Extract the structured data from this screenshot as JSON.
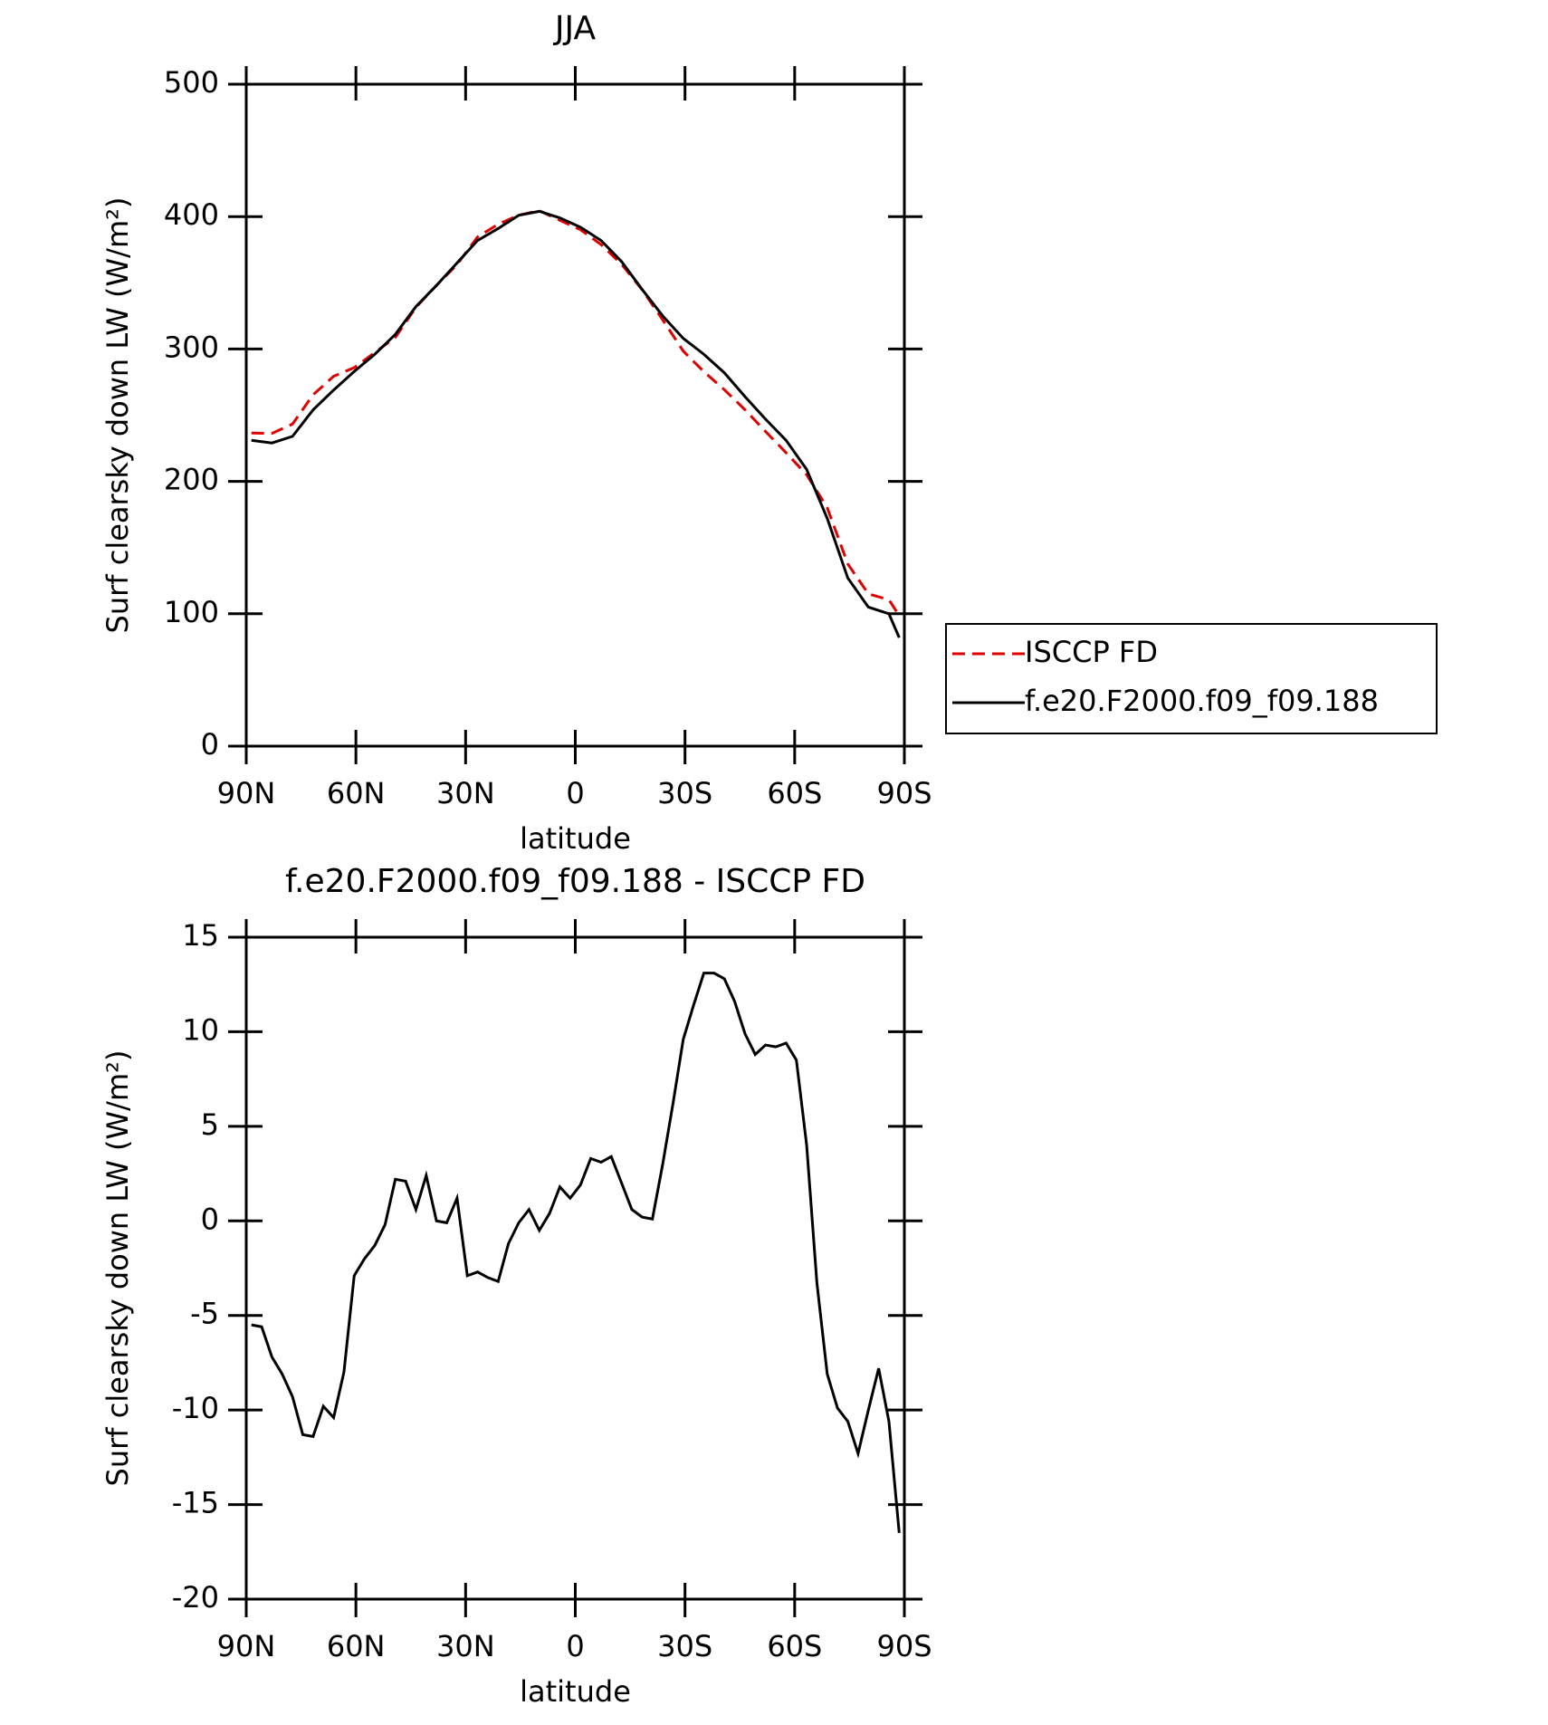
{
  "chart_data": [
    {
      "type": "line",
      "title": "JJA",
      "xlabel": "latitude",
      "ylabel": "Surf clearsky down LW (W/m²)",
      "x": [
        88.59,
        82.97,
        77.34,
        71.72,
        66.09,
        60.47,
        54.84,
        49.22,
        43.59,
        37.97,
        32.34,
        26.72,
        21.09,
        15.47,
        9.84,
        4.22,
        -1.41,
        -7.03,
        -12.66,
        -18.28,
        -23.91,
        -29.53,
        -35.16,
        -40.78,
        -46.41,
        -52.03,
        -57.66,
        -63.28,
        -68.91,
        -74.53,
        -80.16,
        -85.78,
        -88.59
      ],
      "series": [
        {
          "name": "ISCCP FD",
          "color": "#e00000",
          "line_style": "dashed",
          "values": [
            236.5,
            236.2,
            243.3,
            265.4,
            279.4,
            285.9,
            297.3,
            308.8,
            331.4,
            348,
            363.8,
            384.7,
            394.2,
            401.1,
            404.5,
            397.2,
            390.1,
            378.9,
            364,
            344.8,
            322,
            298.4,
            282.9,
            269.2,
            254.1,
            237.7,
            221.6,
            205,
            180.1,
            137.6,
            115,
            110.6,
            98.5
          ]
        },
        {
          "name": "f.e20.F2000.f09_f09.188",
          "color": "#000000",
          "line_style": "solid",
          "values": [
            231,
            229,
            234,
            254,
            269,
            283,
            296,
            311,
            332,
            348,
            365,
            382,
            391,
            401,
            404,
            399,
            392,
            382,
            366,
            345,
            325,
            308,
            296,
            282,
            264,
            247,
            231,
            209,
            172,
            127,
            105,
            100,
            82
          ]
        }
      ],
      "xlim": [
        90,
        -90
      ],
      "xticks": [
        {
          "value": 90,
          "label": "90N"
        },
        {
          "value": 60,
          "label": "60N"
        },
        {
          "value": 30,
          "label": "30N"
        },
        0,
        {
          "value": -30,
          "label": "30S"
        },
        {
          "value": -60,
          "label": "60S"
        },
        {
          "value": -90,
          "label": "90S"
        }
      ],
      "ylim": [
        0,
        500
      ],
      "yticks": [
        0,
        100,
        200,
        300,
        400,
        500
      ],
      "legend": "right"
    },
    {
      "type": "line",
      "title": "f.e20.F2000.f09_f09.188 - ISCCP FD",
      "xlabel": "latitude",
      "ylabel": "Surf clearsky down LW (W/m²)",
      "x": [
        88.59,
        85.78,
        82.97,
        80.16,
        77.34,
        74.53,
        71.72,
        68.91,
        66.09,
        63.28,
        60.47,
        57.66,
        54.84,
        52.03,
        49.22,
        46.41,
        43.59,
        40.78,
        37.97,
        35.16,
        32.34,
        29.53,
        26.72,
        23.91,
        21.09,
        18.28,
        15.47,
        12.66,
        9.84,
        7.03,
        4.22,
        1.41,
        -1.41,
        -4.22,
        -7.03,
        -9.84,
        -12.66,
        -15.47,
        -18.28,
        -21.09,
        -23.91,
        -26.72,
        -29.53,
        -32.34,
        -35.16,
        -37.97,
        -40.78,
        -43.59,
        -46.41,
        -49.22,
        -52.03,
        -54.84,
        -57.66,
        -60.47,
        -63.28,
        -66.09,
        -68.91,
        -71.72,
        -74.53,
        -77.34,
        -80.16,
        -82.97,
        -85.78,
        -88.59
      ],
      "series": [
        {
          "color": "#000000",
          "line_style": "solid",
          "values": [
            -5.5,
            -5.6,
            -7.2,
            -8.1,
            -9.3,
            -11.3,
            -11.4,
            -9.8,
            -10.4,
            -8.0,
            -2.9,
            -2.0,
            -1.3,
            -0.2,
            2.2,
            2.1,
            0.6,
            2.4,
            0.0,
            -0.1,
            1.2,
            -2.9,
            -2.7,
            -3.0,
            -3.2,
            -1.2,
            -0.1,
            0.6,
            -0.5,
            0.4,
            1.8,
            1.2,
            1.9,
            3.3,
            3.1,
            3.4,
            2.0,
            0.6,
            0.2,
            0.1,
            3.0,
            6.2,
            9.6,
            11.4,
            13.1,
            13.1,
            12.8,
            11.6,
            9.9,
            8.8,
            9.3,
            9.2,
            9.4,
            8.5,
            4.0,
            -3.3,
            -8.1,
            -9.9,
            -10.6,
            -12.3,
            -10.0,
            -7.8,
            -10.6,
            -16.5
          ]
        }
      ],
      "xlim": [
        90,
        -90
      ],
      "xticks": [
        {
          "value": 90,
          "label": "90N"
        },
        {
          "value": 60,
          "label": "60N"
        },
        {
          "value": 30,
          "label": "30N"
        },
        0,
        {
          "value": -30,
          "label": "30S"
        },
        {
          "value": -60,
          "label": "60S"
        },
        {
          "value": -90,
          "label": "90S"
        }
      ],
      "ylim": [
        -20,
        15
      ],
      "yticks": [
        -20,
        -15,
        -10,
        -5,
        0,
        5,
        10,
        15
      ]
    }
  ]
}
